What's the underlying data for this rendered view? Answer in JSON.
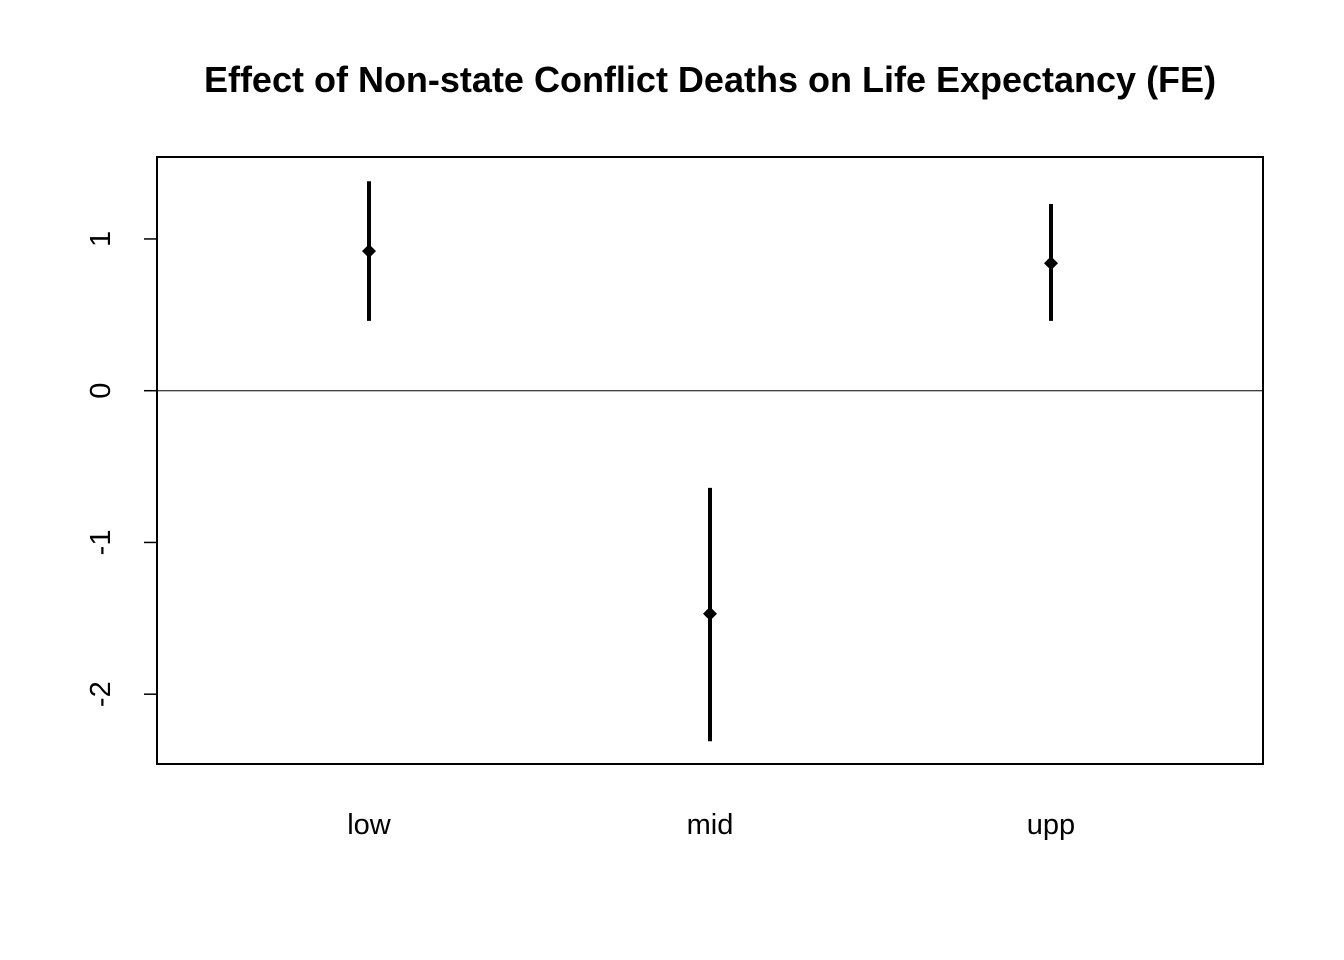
{
  "chart_data": {
    "type": "scatter",
    "title": "Effect of Non-state Conflict Deaths on Life Expectancy (FE)",
    "xlabel": "",
    "ylabel": "",
    "categories": [
      "low",
      "mid",
      "upp"
    ],
    "series": [
      {
        "estimates": [
          0.92,
          -1.47,
          0.84
        ],
        "lower": [
          0.46,
          -2.31,
          0.46
        ],
        "upper": [
          1.38,
          -0.64,
          1.23
        ]
      }
    ],
    "reference_line": 0,
    "ylim": [
      -2.46,
      1.54
    ],
    "y_ticks": [
      -2,
      -1,
      0,
      1
    ],
    "y_tick_labels": [
      "-2",
      "-1",
      "0",
      "1"
    ],
    "grid": false,
    "marker": "diamond",
    "colors": {
      "marks": "#000000",
      "frame": "#000000",
      "background": "#ffffff"
    }
  }
}
